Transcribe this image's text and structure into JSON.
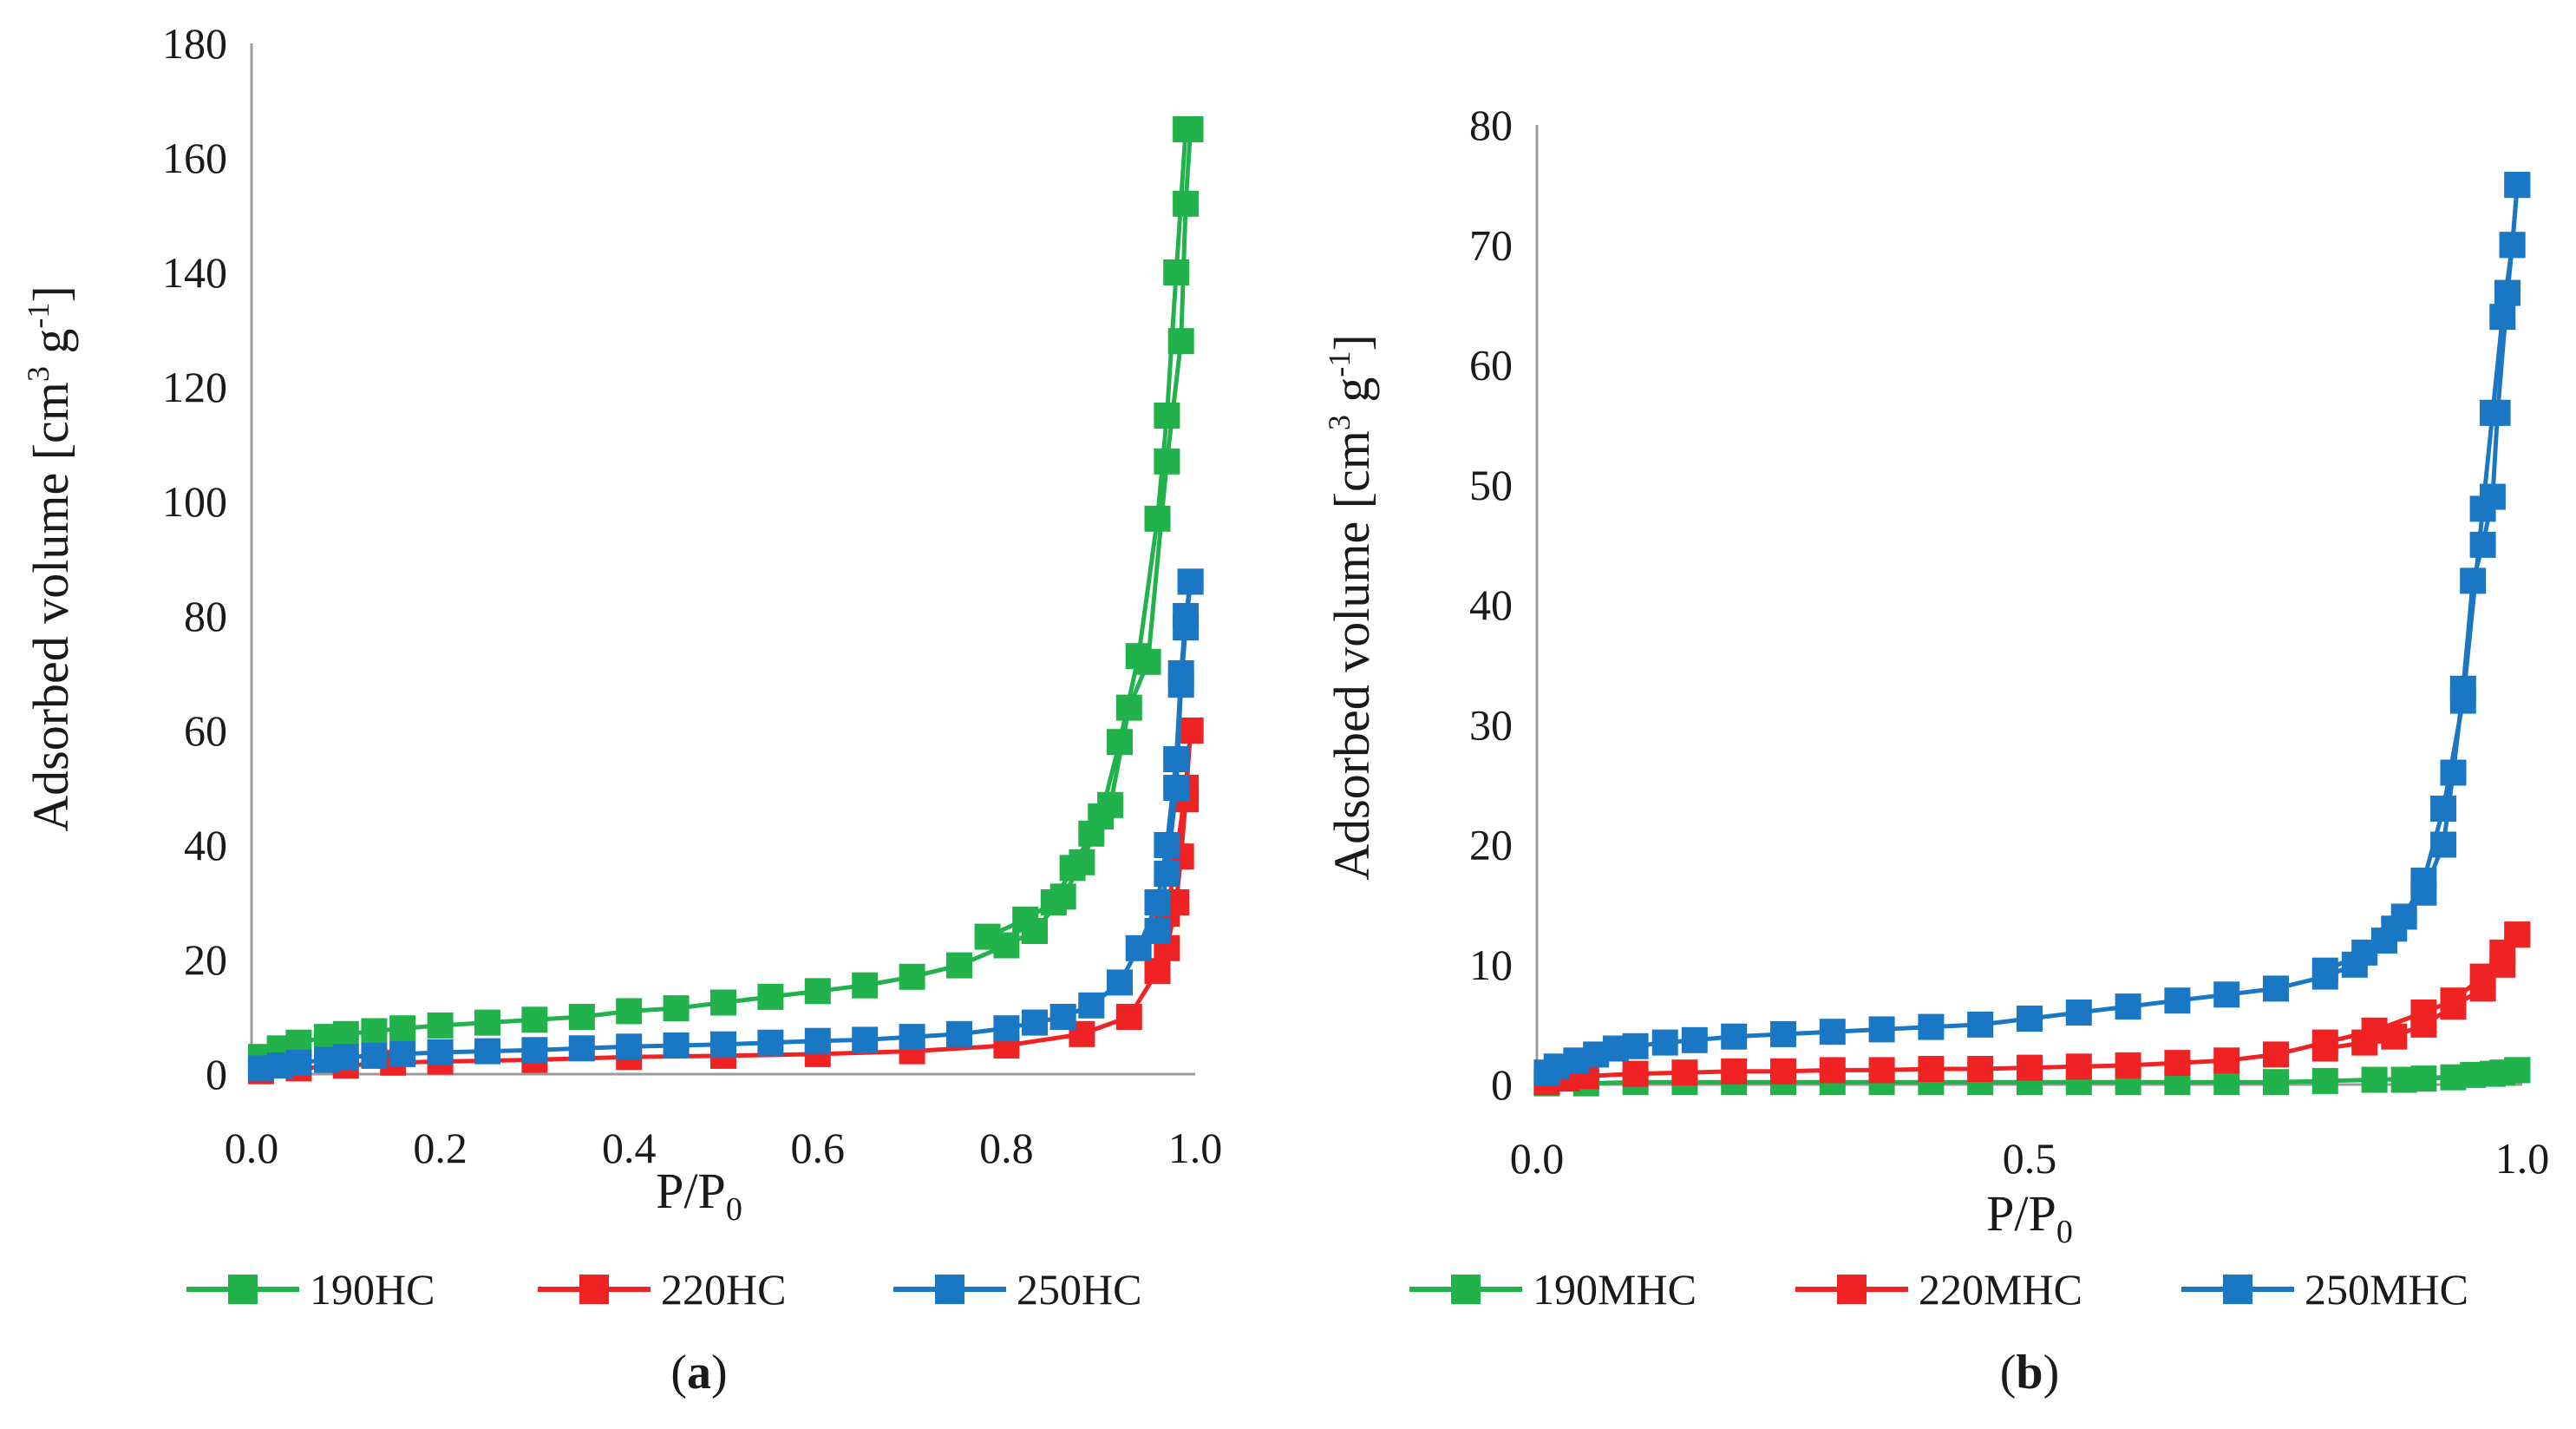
{
  "chart_data": [
    {
      "type": "line",
      "panel_label_open": "(",
      "panel_label_letter": "a",
      "panel_label_close": ")",
      "xlabel_main": "P/P",
      "xlabel_sub": "0",
      "ylabel_main": "Adsorbed volume [cm",
      "ylabel_sup1": "3",
      "ylabel_mid": " g",
      "ylabel_sup2": "-1",
      "ylabel_end": "]",
      "xlim": [
        0,
        1.0
      ],
      "ylim": [
        0,
        180
      ],
      "xticks": [
        "0.0",
        "0.2",
        "0.4",
        "0.6",
        "0.8",
        "1.0"
      ],
      "yticks": [
        "0",
        "20",
        "40",
        "60",
        "80",
        "100",
        "120",
        "140",
        "160",
        "180"
      ],
      "legend_position": "bottom",
      "series": [
        {
          "name": "190HC",
          "color": "#21b24b",
          "adsorption": [
            [
              0.01,
              3
            ],
            [
              0.03,
              4.5
            ],
            [
              0.05,
              5.5
            ],
            [
              0.08,
              6.5
            ],
            [
              0.1,
              7
            ],
            [
              0.13,
              7.5
            ],
            [
              0.16,
              8
            ],
            [
              0.2,
              8.5
            ],
            [
              0.25,
              9
            ],
            [
              0.3,
              9.5
            ],
            [
              0.35,
              10
            ],
            [
              0.4,
              11
            ],
            [
              0.45,
              11.5
            ],
            [
              0.5,
              12.5
            ],
            [
              0.55,
              13.5
            ],
            [
              0.6,
              14.5
            ],
            [
              0.65,
              15.5
            ],
            [
              0.7,
              17
            ],
            [
              0.75,
              19
            ],
            [
              0.8,
              22.5
            ],
            [
              0.83,
              25
            ],
            [
              0.86,
              31
            ],
            [
              0.88,
              37
            ],
            [
              0.9,
              45
            ],
            [
              0.92,
              58
            ],
            [
              0.94,
              73
            ],
            [
              0.96,
              97
            ],
            [
              0.97,
              115
            ],
            [
              0.98,
              140
            ],
            [
              0.99,
              165
            ]
          ],
          "desorption": [
            [
              0.995,
              165
            ],
            [
              0.99,
              152
            ],
            [
              0.985,
              128
            ],
            [
              0.97,
              107
            ],
            [
              0.95,
              72
            ],
            [
              0.93,
              64
            ],
            [
              0.91,
              47
            ],
            [
              0.89,
              42
            ],
            [
              0.87,
              36
            ],
            [
              0.85,
              30
            ],
            [
              0.82,
              27
            ],
            [
              0.78,
              24
            ]
          ]
        },
        {
          "name": "220HC",
          "color": "#ef2323",
          "adsorption": [
            [
              0.01,
              0.5
            ],
            [
              0.05,
              1
            ],
            [
              0.1,
              1.5
            ],
            [
              0.15,
              2
            ],
            [
              0.2,
              2.2
            ],
            [
              0.3,
              2.5
            ],
            [
              0.4,
              3
            ],
            [
              0.5,
              3.2
            ],
            [
              0.6,
              3.5
            ],
            [
              0.7,
              4
            ],
            [
              0.8,
              5
            ],
            [
              0.88,
              7
            ],
            [
              0.93,
              10
            ],
            [
              0.96,
              18
            ],
            [
              0.97,
              28
            ],
            [
              0.98,
              38
            ],
            [
              0.99,
              50
            ],
            [
              0.995,
              60
            ]
          ],
          "desorption": [
            [
              0.995,
              60
            ],
            [
              0.99,
              48
            ],
            [
              0.985,
              38
            ],
            [
              0.98,
              30
            ],
            [
              0.97,
              22
            ]
          ]
        },
        {
          "name": "250HC",
          "color": "#1a77c3",
          "adsorption": [
            [
              0.01,
              1
            ],
            [
              0.03,
              1.5
            ],
            [
              0.05,
              2
            ],
            [
              0.08,
              2.5
            ],
            [
              0.1,
              3
            ],
            [
              0.13,
              3.2
            ],
            [
              0.16,
              3.5
            ],
            [
              0.2,
              3.8
            ],
            [
              0.25,
              4
            ],
            [
              0.3,
              4.2
            ],
            [
              0.35,
              4.5
            ],
            [
              0.4,
              4.8
            ],
            [
              0.45,
              5
            ],
            [
              0.5,
              5.2
            ],
            [
              0.55,
              5.5
            ],
            [
              0.6,
              5.8
            ],
            [
              0.65,
              6
            ],
            [
              0.7,
              6.5
            ],
            [
              0.75,
              7
            ],
            [
              0.8,
              8
            ],
            [
              0.83,
              9
            ],
            [
              0.86,
              10
            ],
            [
              0.89,
              12
            ],
            [
              0.92,
              16
            ],
            [
              0.94,
              22
            ],
            [
              0.96,
              30
            ],
            [
              0.97,
              40
            ],
            [
              0.98,
              55
            ],
            [
              0.985,
              70
            ],
            [
              0.99,
              80
            ],
            [
              0.995,
              86
            ]
          ],
          "desorption": [
            [
              0.995,
              86
            ],
            [
              0.99,
              78
            ],
            [
              0.985,
              68
            ],
            [
              0.98,
              50
            ],
            [
              0.97,
              35
            ],
            [
              0.96,
              25
            ]
          ]
        }
      ]
    },
    {
      "type": "line",
      "panel_label_open": "(",
      "panel_label_letter": "b",
      "panel_label_close": ")",
      "xlabel_main": "P/P",
      "xlabel_sub": "0",
      "ylabel_main": "Adsorbed volume [cm",
      "ylabel_sup1": "3",
      "ylabel_mid": " g",
      "ylabel_sup2": "-1",
      "ylabel_end": "]",
      "xlim": [
        0,
        1.0
      ],
      "ylim": [
        0,
        80
      ],
      "xticks": [
        "0.0",
        "0.5",
        "1.0"
      ],
      "yticks": [
        "0",
        "10",
        "20",
        "30",
        "40",
        "50",
        "60",
        "70",
        "80"
      ],
      "legend_position": "bottom",
      "series": [
        {
          "name": "190MHC",
          "color": "#21b24b",
          "adsorption": [
            [
              0.01,
              0.1
            ],
            [
              0.05,
              0.1
            ],
            [
              0.1,
              0.2
            ],
            [
              0.15,
              0.2
            ],
            [
              0.2,
              0.2
            ],
            [
              0.25,
              0.2
            ],
            [
              0.3,
              0.2
            ],
            [
              0.35,
              0.2
            ],
            [
              0.4,
              0.2
            ],
            [
              0.45,
              0.2
            ],
            [
              0.5,
              0.2
            ],
            [
              0.55,
              0.2
            ],
            [
              0.6,
              0.2
            ],
            [
              0.65,
              0.2
            ],
            [
              0.7,
              0.2
            ],
            [
              0.75,
              0.2
            ],
            [
              0.8,
              0.3
            ],
            [
              0.85,
              0.4
            ],
            [
              0.9,
              0.5
            ],
            [
              0.95,
              0.8
            ],
            [
              0.98,
              1.0
            ],
            [
              0.995,
              1.2
            ]
          ],
          "desorption": [
            [
              0.995,
              1.2
            ],
            [
              0.97,
              0.9
            ],
            [
              0.93,
              0.6
            ],
            [
              0.88,
              0.4
            ]
          ]
        },
        {
          "name": "220MHC",
          "color": "#ef2323",
          "adsorption": [
            [
              0.01,
              0.2
            ],
            [
              0.03,
              0.5
            ],
            [
              0.05,
              0.7
            ],
            [
              0.1,
              0.9
            ],
            [
              0.15,
              1
            ],
            [
              0.2,
              1.1
            ],
            [
              0.25,
              1.1
            ],
            [
              0.3,
              1.2
            ],
            [
              0.35,
              1.2
            ],
            [
              0.4,
              1.3
            ],
            [
              0.45,
              1.3
            ],
            [
              0.5,
              1.4
            ],
            [
              0.55,
              1.5
            ],
            [
              0.6,
              1.6
            ],
            [
              0.65,
              1.8
            ],
            [
              0.7,
              2
            ],
            [
              0.75,
              2.5
            ],
            [
              0.8,
              3.5
            ],
            [
              0.85,
              4.5
            ],
            [
              0.9,
              6
            ],
            [
              0.93,
              7
            ],
            [
              0.96,
              9
            ],
            [
              0.98,
              11
            ],
            [
              0.995,
              12.5
            ]
          ],
          "desorption": [
            [
              0.995,
              12.5
            ],
            [
              0.98,
              10
            ],
            [
              0.96,
              8
            ],
            [
              0.93,
              6.5
            ],
            [
              0.9,
              5
            ],
            [
              0.87,
              4
            ],
            [
              0.84,
              3.5
            ],
            [
              0.8,
              3
            ]
          ]
        },
        {
          "name": "250MHC",
          "color": "#1a77c3",
          "adsorption": [
            [
              0.01,
              1
            ],
            [
              0.02,
              1.5
            ],
            [
              0.04,
              2
            ],
            [
              0.06,
              2.5
            ],
            [
              0.08,
              3
            ],
            [
              0.1,
              3.2
            ],
            [
              0.13,
              3.5
            ],
            [
              0.16,
              3.7
            ],
            [
              0.2,
              4
            ],
            [
              0.25,
              4.2
            ],
            [
              0.3,
              4.4
            ],
            [
              0.35,
              4.6
            ],
            [
              0.4,
              4.8
            ],
            [
              0.45,
              5
            ],
            [
              0.5,
              5.5
            ],
            [
              0.55,
              6
            ],
            [
              0.6,
              6.5
            ],
            [
              0.65,
              7
            ],
            [
              0.7,
              7.5
            ],
            [
              0.75,
              8
            ],
            [
              0.8,
              9
            ],
            [
              0.83,
              10
            ],
            [
              0.86,
              12
            ],
            [
              0.88,
              14
            ],
            [
              0.9,
              17
            ],
            [
              0.92,
              23
            ],
            [
              0.94,
              32
            ],
            [
              0.96,
              48
            ],
            [
              0.97,
              56
            ],
            [
              0.98,
              64
            ],
            [
              0.99,
              70
            ],
            [
              0.995,
              75
            ]
          ],
          "desorption": [
            [
              0.995,
              75
            ],
            [
              0.99,
              70
            ],
            [
              0.985,
              66
            ],
            [
              0.975,
              56
            ],
            [
              0.97,
              49
            ],
            [
              0.96,
              45
            ],
            [
              0.95,
              42
            ],
            [
              0.94,
              33
            ],
            [
              0.93,
              26
            ],
            [
              0.92,
              20
            ],
            [
              0.9,
              16
            ],
            [
              0.87,
              13
            ],
            [
              0.84,
              11
            ],
            [
              0.8,
              9.5
            ]
          ]
        }
      ]
    }
  ]
}
